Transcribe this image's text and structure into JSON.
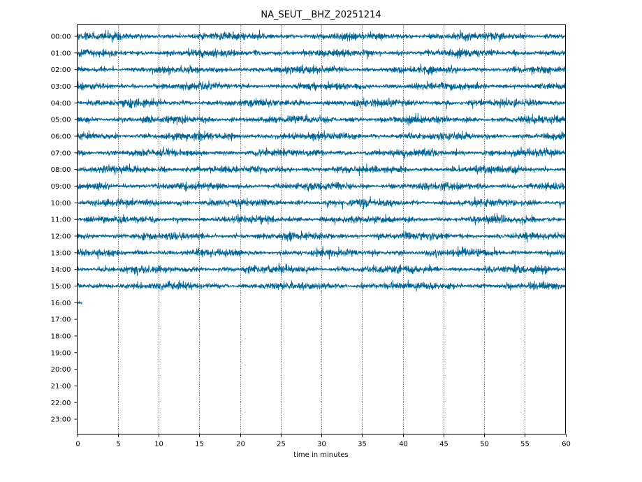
{
  "chart_data": {
    "type": "line",
    "title": "NA_SEUT__BHZ_20251214",
    "xlabel": "time in minutes",
    "ylabel": "",
    "xlim": [
      0,
      60
    ],
    "x_ticks": [
      0,
      5,
      10,
      15,
      20,
      25,
      30,
      35,
      40,
      45,
      50,
      55,
      60
    ],
    "y_tick_labels": [
      "00:00",
      "01:00",
      "02:00",
      "03:00",
      "04:00",
      "05:00",
      "06:00",
      "07:00",
      "08:00",
      "09:00",
      "10:00",
      "11:00",
      "12:00",
      "13:00",
      "14:00",
      "15:00",
      "16:00",
      "17:00",
      "18:00",
      "19:00",
      "20:00",
      "21:00",
      "22:00",
      "23:00"
    ],
    "grid": "vertical dotted at x ticks",
    "trace_color": "#00669a",
    "series": [
      {
        "hour": "00:00",
        "start_min": 0,
        "end_min": 60
      },
      {
        "hour": "01:00",
        "start_min": 0,
        "end_min": 60
      },
      {
        "hour": "02:00",
        "start_min": 0,
        "end_min": 60
      },
      {
        "hour": "03:00",
        "start_min": 0,
        "end_min": 60
      },
      {
        "hour": "04:00",
        "start_min": 0,
        "end_min": 60
      },
      {
        "hour": "05:00",
        "start_min": 0,
        "end_min": 60
      },
      {
        "hour": "06:00",
        "start_min": 0,
        "end_min": 60
      },
      {
        "hour": "07:00",
        "start_min": 0,
        "end_min": 60
      },
      {
        "hour": "08:00",
        "start_min": 0,
        "end_min": 60
      },
      {
        "hour": "09:00",
        "start_min": 0,
        "end_min": 60
      },
      {
        "hour": "10:00",
        "start_min": 0,
        "end_min": 60
      },
      {
        "hour": "11:00",
        "start_min": 0,
        "end_min": 60
      },
      {
        "hour": "12:00",
        "start_min": 0,
        "end_min": 60
      },
      {
        "hour": "13:00",
        "start_min": 0,
        "end_min": 60
      },
      {
        "hour": "14:00",
        "start_min": 0,
        "end_min": 60
      },
      {
        "hour": "15:00",
        "start_min": 0,
        "end_min": 60
      },
      {
        "hour": "16:00",
        "start_min": 0,
        "end_min": 0.6
      }
    ]
  }
}
